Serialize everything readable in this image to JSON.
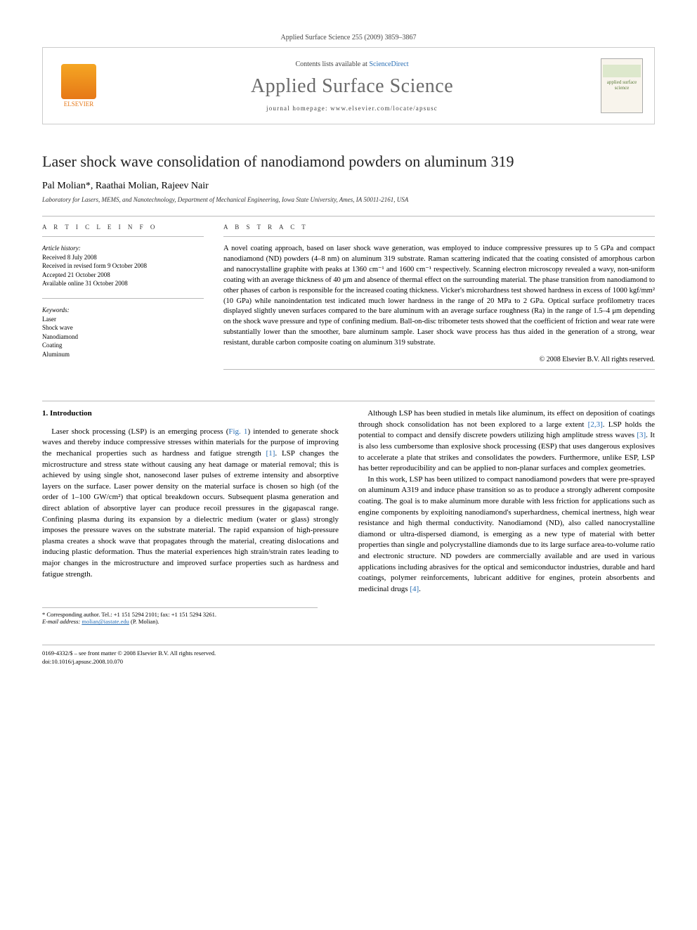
{
  "journal_ref": "Applied Surface Science 255 (2009) 3859–3867",
  "header": {
    "elsevier": "ELSEVIER",
    "contents_prefix": "Contents lists available at ",
    "contents_link": "ScienceDirect",
    "journal_title": "Applied Surface Science",
    "homepage_prefix": "journal homepage: ",
    "homepage": "www.elsevier.com/locate/apsusc",
    "cover_text": "applied surface science"
  },
  "title": "Laser shock wave consolidation of nanodiamond powders on aluminum 319",
  "authors": "Pal Molian*, Raathai Molian, Rajeev Nair",
  "affiliation": "Laboratory for Lasers, MEMS, and Nanotechnology, Department of Mechanical Engineering, Iowa State University, Ames, IA 50011-2161, USA",
  "info": {
    "heading": "A R T I C L E   I N F O",
    "history_label": "Article history:",
    "received": "Received 8 July 2008",
    "revised": "Received in revised form 9 October 2008",
    "accepted": "Accepted 21 October 2008",
    "online": "Available online 31 October 2008",
    "keywords_label": "Keywords:",
    "kw1": "Laser",
    "kw2": "Shock wave",
    "kw3": "Nanodiamond",
    "kw4": "Coating",
    "kw5": "Aluminum"
  },
  "abstract": {
    "heading": "A B S T R A C T",
    "text": "A novel coating approach, based on laser shock wave generation, was employed to induce compressive pressures up to 5 GPa and compact nanodiamond (ND) powders (4–8 nm) on aluminum 319 substrate. Raman scattering indicated that the coating consisted of amorphous carbon and nanocrystalline graphite with peaks at 1360 cm⁻¹ and 1600 cm⁻¹ respectively. Scanning electron microscopy revealed a wavy, non-uniform coating with an average thickness of 40 μm and absence of thermal effect on the surrounding material. The phase transition from nanodiamond to other phases of carbon is responsible for the increased coating thickness. Vicker's microhardness test showed hardness in excess of 1000 kgf/mm² (10 GPa) while nanoindentation test indicated much lower hardness in the range of 20 MPa to 2 GPa. Optical surface profilometry traces displayed slightly uneven surfaces compared to the bare aluminum with an average surface roughness (Ra) in the range of 1.5–4 μm depending on the shock wave pressure and type of confining medium. Ball-on-disc tribometer tests showed that the coefficient of friction and wear rate were substantially lower than the smoother, bare aluminum sample. Laser shock wave process has thus aided in the generation of a strong, wear resistant, durable carbon composite coating on aluminum 319 substrate.",
    "copyright": "© 2008 Elsevier B.V. All rights reserved."
  },
  "body": {
    "section": "1. Introduction",
    "p1a": "Laser shock processing (LSP) is an emerging process (",
    "p1_fig": "Fig. 1",
    "p1b": ") intended to generate shock waves and thereby induce compressive stresses within materials for the purpose of improving the mechanical properties such as hardness and fatigue strength ",
    "p1_ref1": "[1]",
    "p1c": ". LSP changes the microstructure and stress state without causing any heat damage or material removal; this is achieved by using single shot, nanosecond laser pulses of extreme intensity and absorptive layers on the surface. Laser power density on the material surface is chosen so high (of the order of 1–100 GW/cm²) that optical breakdown occurs. Subsequent plasma generation and direct ablation of absorptive layer can produce recoil pressures in the gigapascal range. Confining plasma during its expansion by a dielectric medium (water or glass) strongly imposes the pressure waves on the substrate material. The rapid expansion of high-pressure plasma creates a shock wave that propagates through the material, creating dislocations and inducing plastic deformation. Thus the material experiences high strain/strain rates leading to major changes in the microstructure and improved surface properties such as hardness and fatigue strength.",
    "p2a": "Although LSP has been studied in metals like aluminum, its effect on deposition of coatings through shock consolidation has not been explored to a large extent ",
    "p2_ref1": "[2,3]",
    "p2b": ". LSP holds the potential to compact and densify discrete powders utilizing high amplitude stress waves ",
    "p2_ref2": "[3]",
    "p2c": ". It is also less cumbersome than explosive shock processing (ESP) that uses dangerous explosives to accelerate a plate that strikes and consolidates the powders. Furthermore, unlike ESP, LSP has better reproducibility and can be applied to non-planar surfaces and complex geometries.",
    "p3a": "In this work, LSP has been utilized to compact nanodiamond powders that were pre-sprayed on aluminum A319 and induce phase transition so as to produce a strongly adherent composite coating. The goal is to make aluminum more durable with less friction for applications such as engine components by exploiting nanodiamond's superhardness, chemical inertness, high wear resistance and high thermal conductivity. Nanodiamond (ND), also called nanocrystalline diamond or ultra-dispersed diamond, is emerging as a new type of material with better properties than single and polycrystalline diamonds due to its large surface area-to-volume ratio and electronic structure. ND powders are commercially available and are used in various applications including abrasives for the optical and semiconductor industries, durable and hard coatings, polymer reinforcements, lubricant additive for engines, protein absorbents and medicinal drugs ",
    "p3_ref1": "[4]",
    "p3b": "."
  },
  "corr": {
    "label": "* Corresponding author. Tel.: +1 151 5294 2101; fax: +1 151 5294 3261.",
    "email_label": "E-mail address:",
    "email": "molian@iastate.edu",
    "email_who": "(P. Molian)."
  },
  "footer": {
    "issn": "0169-4332/$ – see front matter © 2008 Elsevier B.V. All rights reserved.",
    "doi": "doi:10.1016/j.apsusc.2008.10.070"
  },
  "colors": {
    "link": "#2a6fb5",
    "elsevier_orange": "#e67817",
    "rule": "#bbbbbb",
    "title_gray": "#6b6b6b"
  }
}
